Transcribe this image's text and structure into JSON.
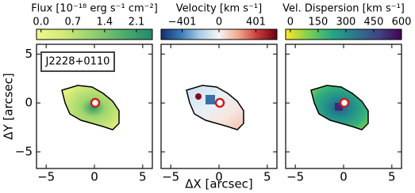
{
  "chart_data": [
    {
      "type": "heatmap",
      "colorbar_label": "Flux [10⁻¹⁸ erg s⁻¹ cm⁻²]",
      "clim": [
        -0.1,
        2.45
      ],
      "cticks": [
        {
          "value": 0,
          "label": "0.0"
        },
        {
          "value": 0.7,
          "label": "0.7"
        },
        {
          "value": 1.4,
          "label": "1.4"
        },
        {
          "value": 2.1,
          "label": "2.1"
        }
      ],
      "colorscale": [
        "#f4f88a",
        "#cfe878",
        "#8fcf6e",
        "#4fae6a",
        "#1f8a6c"
      ],
      "xlim": [
        -6,
        6
      ],
      "xticks": [
        {
          "value": -5,
          "label": "−5"
        },
        0,
        5
      ],
      "ylim": [
        -6.7,
        6
      ],
      "yticks": [
        {
          "value": -5,
          "label": "−5"
        },
        0,
        5
      ],
      "ytick_labels": true,
      "ylabel": "ΔY [arcsec]",
      "annotation": "J2228+0110"
    },
    {
      "type": "heatmap",
      "colorbar_label": "Velocity [km s⁻¹]",
      "clim": [
        -630,
        630
      ],
      "cticks": [
        {
          "value": -401,
          "label": "−401"
        },
        0,
        401
      ],
      "colorscale": [
        "#14306e",
        "#3a78b8",
        "#a8cde4",
        "#f7f7f7",
        "#f2a88c",
        "#c83a3a",
        "#6a0014"
      ],
      "xlim": [
        -6,
        6
      ],
      "xticks": [
        {
          "value": -5,
          "label": "−5"
        },
        0,
        5
      ],
      "ylim": [
        -6.7,
        6
      ],
      "yticks": [
        {
          "value": -5,
          "label": "−5"
        },
        0,
        5
      ],
      "ytick_labels": false,
      "xlabel": "ΔX [arcsec]"
    },
    {
      "type": "heatmap",
      "colorbar_label": "Vel. Dispersion [km s⁻¹]",
      "clim": [
        -25,
        600
      ],
      "cticks": [
        0,
        150,
        300,
        450,
        600
      ],
      "colorscale": [
        "#fde725",
        "#7ad151",
        "#22a884",
        "#2a788e",
        "#414487",
        "#440154"
      ],
      "xlim": [
        -6,
        6
      ],
      "xticks": [
        {
          "value": -5,
          "label": "−5"
        },
        0,
        5
      ],
      "ylim": [
        -6.7,
        6
      ],
      "yticks": [
        {
          "value": -5,
          "label": "−5"
        },
        0,
        5
      ],
      "ytick_labels": false
    }
  ]
}
